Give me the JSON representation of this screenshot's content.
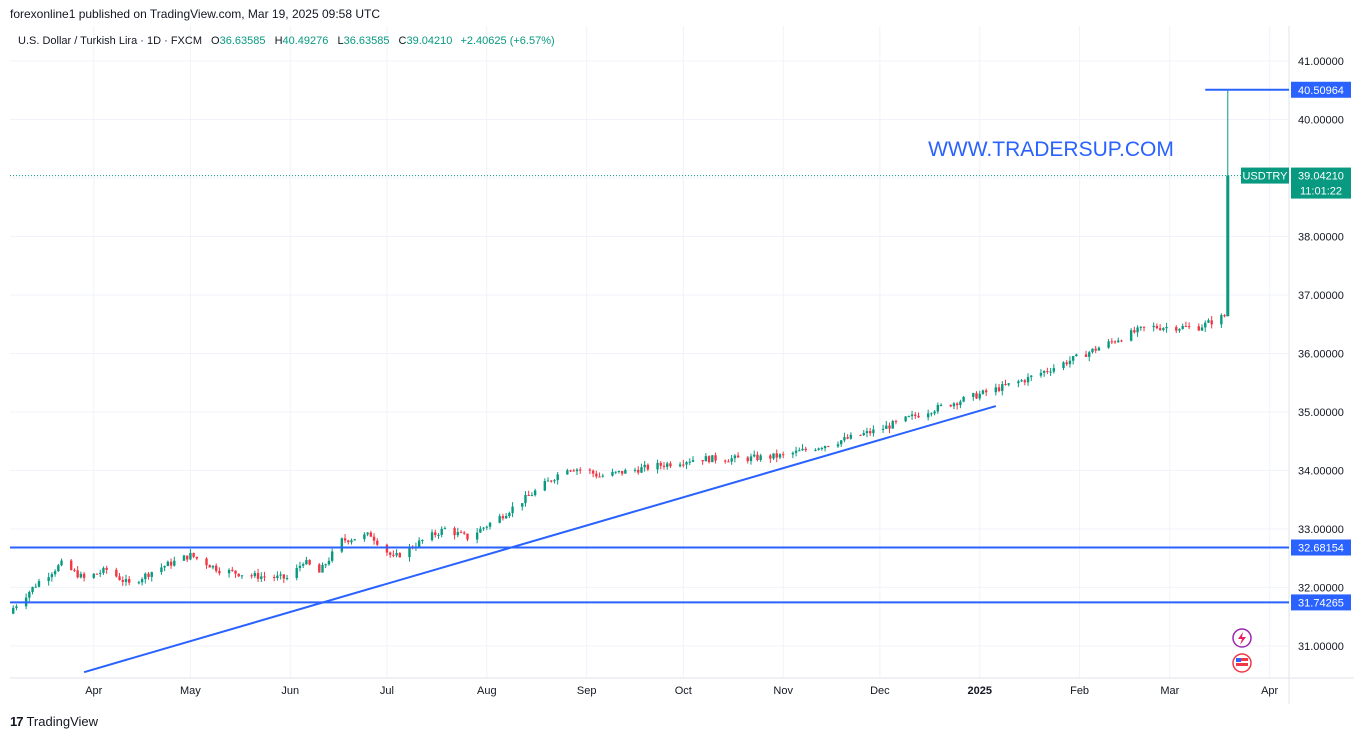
{
  "header": {
    "caption": "forexonline1 published on TradingView.com, Mar 19, 2025 09:58 UTC"
  },
  "legend": {
    "symbol": "U.S. Dollar / Turkish Lira · 1D · FXCM",
    "o_label": "O",
    "o_value": "36.63585",
    "h_label": "H",
    "h_value": "40.49276",
    "l_label": "L",
    "l_value": "36.63585",
    "c_label": "C",
    "c_value": "39.04210",
    "change": "+2.40625 (+6.57%)"
  },
  "watermark": "WWW.TRADERSUP.COM",
  "footer": {
    "brand": "TradingView",
    "logo_mark": "17"
  },
  "chart_data": {
    "type": "candlestick",
    "title": "U.S. Dollar / Turkish Lira · 1D · FXCM",
    "ylim": [
      30.45,
      41.6
    ],
    "y_ticks": [
      "31.00000",
      "32.00000",
      "33.00000",
      "34.00000",
      "35.00000",
      "36.00000",
      "37.00000",
      "38.00000",
      "39.00000",
      "40.00000",
      "41.00000"
    ],
    "y_tick_values": [
      31,
      32,
      33,
      34,
      35,
      36,
      37,
      38,
      39,
      40,
      41
    ],
    "x_ticks": [
      "Apr",
      "May",
      "Jun",
      "Jul",
      "Aug",
      "Sep",
      "Oct",
      "Nov",
      "Dec",
      "2025",
      "Feb",
      "Mar",
      "Apr"
    ],
    "x_tick_dates": [
      "2024-04-01",
      "2024-05-01",
      "2024-06-01",
      "2024-07-01",
      "2024-08-01",
      "2024-09-01",
      "2024-10-01",
      "2024-11-01",
      "2024-12-01",
      "2025-01-01",
      "2025-02-01",
      "2025-03-01",
      "2025-04-01"
    ],
    "x_range": [
      "2024-03-06",
      "2025-04-07"
    ],
    "grid": true,
    "colors": {
      "up": "#089981",
      "down": "#f23645",
      "line": "#2962ff",
      "text": "#131722"
    },
    "series_close_anchors": [
      {
        "date": "2024-03-07",
        "close": 31.65
      },
      {
        "date": "2024-03-15",
        "close": 32.1
      },
      {
        "date": "2024-03-22",
        "close": 32.4
      },
      {
        "date": "2024-03-29",
        "close": 32.15
      },
      {
        "date": "2024-04-05",
        "close": 32.3
      },
      {
        "date": "2024-04-12",
        "close": 32.05
      },
      {
        "date": "2024-04-20",
        "close": 32.3
      },
      {
        "date": "2024-05-01",
        "close": 32.55
      },
      {
        "date": "2024-05-10",
        "close": 32.3
      },
      {
        "date": "2024-05-20",
        "close": 32.2
      },
      {
        "date": "2024-06-01",
        "close": 32.15
      },
      {
        "date": "2024-06-05",
        "close": 32.45
      },
      {
        "date": "2024-06-10",
        "close": 32.25
      },
      {
        "date": "2024-06-17",
        "close": 32.8
      },
      {
        "date": "2024-06-26",
        "close": 32.9
      },
      {
        "date": "2024-07-03",
        "close": 32.5
      },
      {
        "date": "2024-07-12",
        "close": 32.8
      },
      {
        "date": "2024-07-19",
        "close": 33.0
      },
      {
        "date": "2024-07-26",
        "close": 32.85
      },
      {
        "date": "2024-08-05",
        "close": 33.2
      },
      {
        "date": "2024-08-15",
        "close": 33.6
      },
      {
        "date": "2024-08-26",
        "close": 34.05
      },
      {
        "date": "2024-09-01",
        "close": 34.0
      },
      {
        "date": "2024-09-05",
        "close": 33.9
      },
      {
        "date": "2024-09-20",
        "close": 34.05
      },
      {
        "date": "2024-10-05",
        "close": 34.2
      },
      {
        "date": "2024-10-20",
        "close": 34.2
      },
      {
        "date": "2024-11-01",
        "close": 34.25
      },
      {
        "date": "2024-11-15",
        "close": 34.45
      },
      {
        "date": "2024-12-01",
        "close": 34.7
      },
      {
        "date": "2024-12-15",
        "close": 35.0
      },
      {
        "date": "2025-01-01",
        "close": 35.3
      },
      {
        "date": "2025-01-15",
        "close": 35.55
      },
      {
        "date": "2025-02-01",
        "close": 35.95
      },
      {
        "date": "2025-02-15",
        "close": 36.3
      },
      {
        "date": "2025-02-22",
        "close": 36.45
      },
      {
        "date": "2025-03-10",
        "close": 36.45
      },
      {
        "date": "2025-03-18",
        "close": 36.64
      }
    ],
    "last_candle": {
      "date": "2025-03-19",
      "open": 36.63585,
      "high": 40.49276,
      "low": 36.63585,
      "close": 39.0421
    },
    "horizontal_lines": [
      {
        "value": 32.68154,
        "label": "32.68154"
      },
      {
        "value": 31.74265,
        "label": "31.74265"
      },
      {
        "value": 40.50964,
        "label": "40.50964",
        "from": "2025-03-12"
      }
    ],
    "trendline": {
      "start": {
        "date": "2024-03-29",
        "value": 30.55
      },
      "end": {
        "date": "2025-01-06",
        "value": 35.1
      }
    },
    "price_tag": {
      "symbol": "USDTRY",
      "price": "39.04210",
      "countdown": "11:01:22",
      "value": 39.0421
    }
  }
}
